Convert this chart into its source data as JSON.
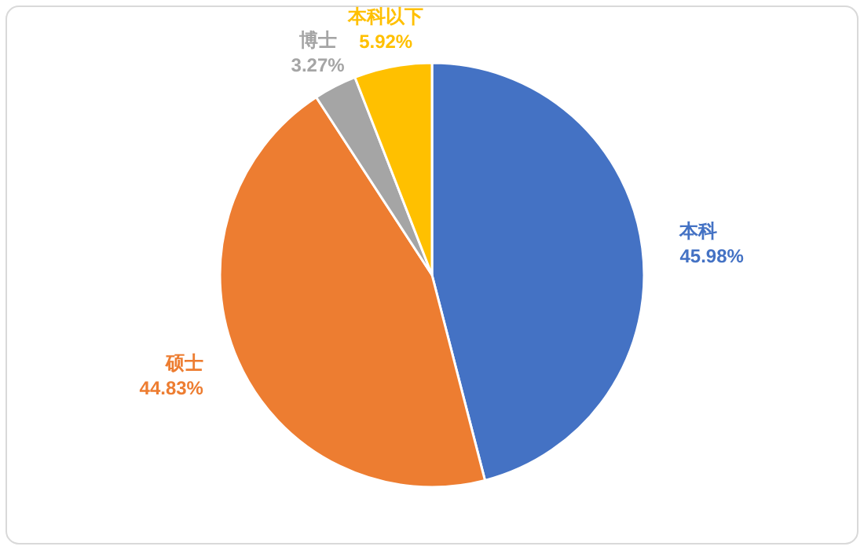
{
  "chart_data": {
    "type": "pie",
    "categories": [
      "本科",
      "硕士",
      "博士",
      "本科以下"
    ],
    "values": [
      45.98,
      44.83,
      3.27,
      5.92
    ],
    "colors": [
      "#4472c4",
      "#ed7d31",
      "#a5a5a5",
      "#ffc000"
    ],
    "value_labels": [
      "45.98%",
      "44.83%",
      "3.27%",
      "5.92%"
    ]
  }
}
